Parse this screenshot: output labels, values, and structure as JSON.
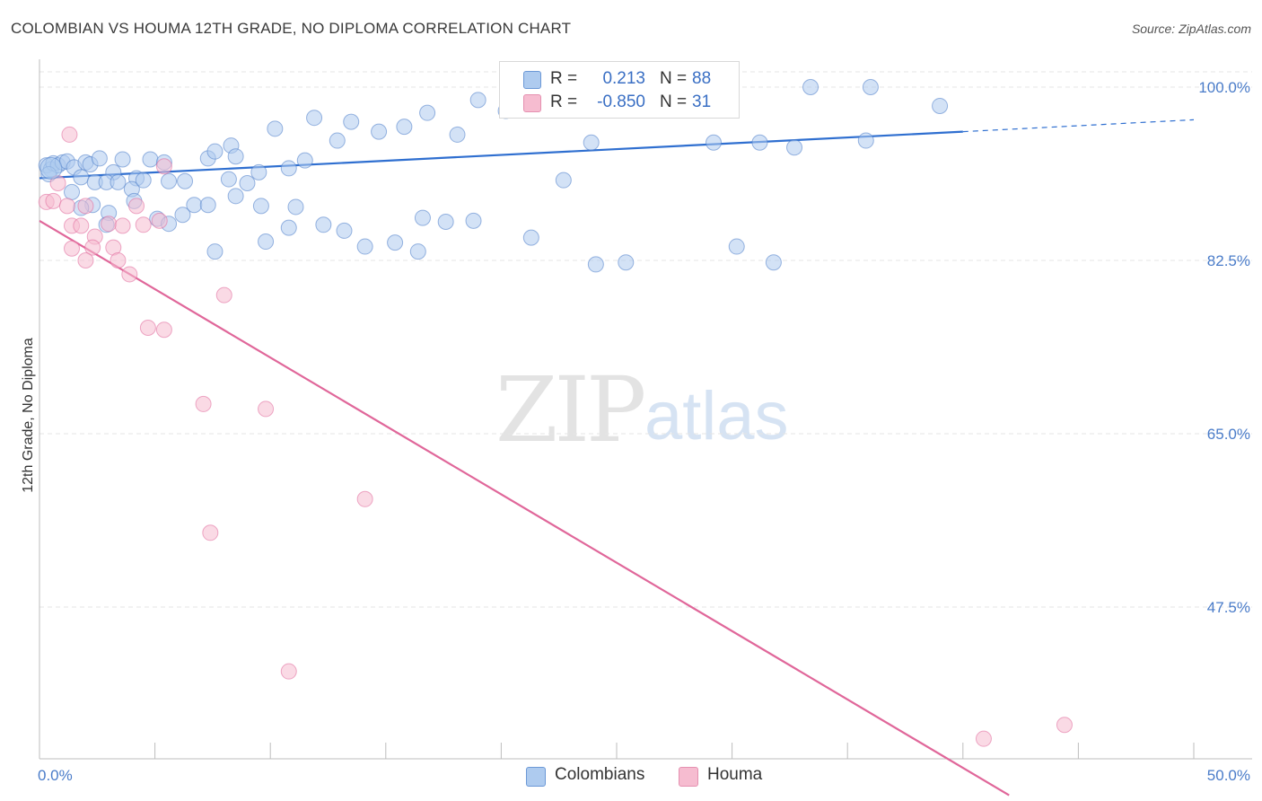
{
  "header": {
    "title": "COLOMBIAN VS HOUMA 12TH GRADE, NO DIPLOMA CORRELATION CHART",
    "source": "Source: ZipAtlas.com"
  },
  "watermark": {
    "zip": "ZIP",
    "atlas": "atlas"
  },
  "legend": {
    "rows": [
      {
        "r_label": "R =",
        "r_value": "0.213",
        "n_label": "N =",
        "n_value": "88",
        "color": "#aecbef"
      },
      {
        "r_label": "R =",
        "r_value": "-0.850",
        "n_label": "N =",
        "n_value": "31",
        "color": "#f6bcd0"
      }
    ]
  },
  "bottom_legend": [
    {
      "label": "Colombians",
      "color": "#aecbef"
    },
    {
      "label": "Houma",
      "color": "#f6bcd0"
    }
  ],
  "chart_data": {
    "type": "scatter",
    "title": "COLOMBIAN VS HOUMA 12TH GRADE, NO DIPLOMA CORRELATION CHART",
    "ylabel": "12th Grade, No Diploma",
    "xlabel": "",
    "xlim": [
      0,
      50
    ],
    "ylim": [
      30,
      100
    ],
    "x_tick_labels": [
      "0.0%",
      "50.0%"
    ],
    "y_ticks": [
      47.5,
      65.0,
      82.5,
      100.0
    ],
    "y_tick_labels": [
      "47.5%",
      "65.0%",
      "82.5%",
      "100.0%"
    ],
    "grid": true,
    "legend_position": "top-center",
    "series": [
      {
        "name": "Colombians",
        "color": "#4a7cc9",
        "fill": "#aecbef",
        "trend": {
          "x": [
            0,
            40
          ],
          "y": [
            90.8,
            95.5
          ],
          "dashed_to_x": 50,
          "dashed_to_y": 96.7
        },
        "points": [
          [
            0.3,
            92.1
          ],
          [
            0.5,
            91.7
          ],
          [
            0.6,
            92.3
          ],
          [
            0.8,
            92.1
          ],
          [
            1.0,
            92.4
          ],
          [
            1.2,
            92.5
          ],
          [
            0.4,
            91.2
          ],
          [
            1.5,
            91.9
          ],
          [
            1.8,
            90.9
          ],
          [
            2.0,
            92.4
          ],
          [
            2.2,
            92.2
          ],
          [
            2.6,
            92.8
          ],
          [
            3.2,
            91.4
          ],
          [
            3.6,
            92.7
          ],
          [
            4.2,
            90.8
          ],
          [
            4.8,
            92.7
          ],
          [
            5.4,
            92.4
          ],
          [
            2.4,
            90.4
          ],
          [
            1.4,
            89.4
          ],
          [
            2.9,
            90.4
          ],
          [
            3.4,
            90.4
          ],
          [
            4.0,
            89.7
          ],
          [
            4.5,
            90.6
          ],
          [
            5.6,
            90.5
          ],
          [
            6.3,
            90.5
          ],
          [
            6.7,
            88.1
          ],
          [
            7.3,
            92.8
          ],
          [
            7.6,
            93.5
          ],
          [
            8.3,
            94.1
          ],
          [
            8.5,
            93.0
          ],
          [
            9.0,
            90.3
          ],
          [
            9.5,
            91.4
          ],
          [
            10.2,
            95.8
          ],
          [
            11.5,
            92.6
          ],
          [
            11.9,
            96.9
          ],
          [
            12.9,
            94.6
          ],
          [
            13.5,
            96.5
          ],
          [
            14.7,
            95.5
          ],
          [
            15.8,
            96.0
          ],
          [
            16.8,
            97.4
          ],
          [
            18.1,
            95.2
          ],
          [
            19.0,
            98.7
          ],
          [
            20.2,
            97.6
          ],
          [
            21.3,
            100.0
          ],
          [
            22.7,
            90.6
          ],
          [
            23.9,
            94.4
          ],
          [
            25.3,
            100.0
          ],
          [
            26.0,
            100.0
          ],
          [
            27.5,
            100.0
          ],
          [
            28.9,
            100.0
          ],
          [
            23.0,
            98.2
          ],
          [
            31.2,
            94.4
          ],
          [
            33.4,
            100.0
          ],
          [
            36.0,
            100.0
          ],
          [
            39.0,
            98.1
          ],
          [
            29.2,
            94.4
          ],
          [
            35.8,
            94.6
          ],
          [
            32.7,
            93.9
          ],
          [
            7.3,
            88.1
          ],
          [
            8.5,
            89.0
          ],
          [
            9.6,
            88.0
          ],
          [
            11.1,
            87.9
          ],
          [
            12.3,
            86.1
          ],
          [
            14.1,
            83.9
          ],
          [
            15.4,
            84.3
          ],
          [
            17.6,
            86.4
          ],
          [
            13.2,
            85.5
          ],
          [
            10.8,
            85.8
          ],
          [
            7.6,
            83.4
          ],
          [
            6.2,
            87.1
          ],
          [
            5.1,
            86.7
          ],
          [
            4.1,
            88.5
          ],
          [
            3.0,
            87.3
          ],
          [
            2.3,
            88.1
          ],
          [
            1.8,
            87.8
          ],
          [
            2.9,
            86.1
          ],
          [
            16.4,
            83.4
          ],
          [
            16.6,
            86.8
          ],
          [
            18.8,
            86.5
          ],
          [
            21.3,
            84.8
          ],
          [
            24.1,
            82.1
          ],
          [
            25.4,
            82.3
          ],
          [
            31.8,
            82.3
          ],
          [
            30.2,
            83.9
          ],
          [
            8.2,
            90.7
          ],
          [
            10.8,
            91.8
          ],
          [
            9.8,
            84.4
          ],
          [
            5.6,
            86.2
          ]
        ]
      },
      {
        "name": "Houma",
        "color": "#e0679a",
        "fill": "#f6bcd0",
        "trend": {
          "x": [
            0,
            42
          ],
          "y": [
            86.5,
            28.5
          ]
        },
        "points": [
          [
            0.3,
            88.4
          ],
          [
            0.6,
            88.5
          ],
          [
            0.8,
            90.3
          ],
          [
            1.2,
            88.0
          ],
          [
            1.4,
            86.0
          ],
          [
            1.8,
            86.0
          ],
          [
            2.0,
            88.0
          ],
          [
            2.4,
            84.9
          ],
          [
            3.0,
            86.2
          ],
          [
            3.6,
            86.0
          ],
          [
            4.2,
            88.0
          ],
          [
            4.5,
            86.1
          ],
          [
            5.2,
            86.5
          ],
          [
            5.4,
            92.0
          ],
          [
            1.4,
            83.7
          ],
          [
            2.3,
            83.8
          ],
          [
            3.2,
            83.8
          ],
          [
            2.0,
            82.5
          ],
          [
            3.4,
            82.5
          ],
          [
            3.9,
            81.1
          ],
          [
            1.3,
            95.2
          ],
          [
            8.0,
            79.0
          ],
          [
            4.7,
            75.7
          ],
          [
            5.4,
            75.5
          ],
          [
            7.1,
            68.0
          ],
          [
            9.8,
            67.5
          ],
          [
            14.1,
            58.4
          ],
          [
            7.4,
            55.0
          ],
          [
            10.8,
            41.0
          ],
          [
            40.9,
            34.2
          ],
          [
            44.4,
            35.6
          ]
        ]
      }
    ]
  }
}
